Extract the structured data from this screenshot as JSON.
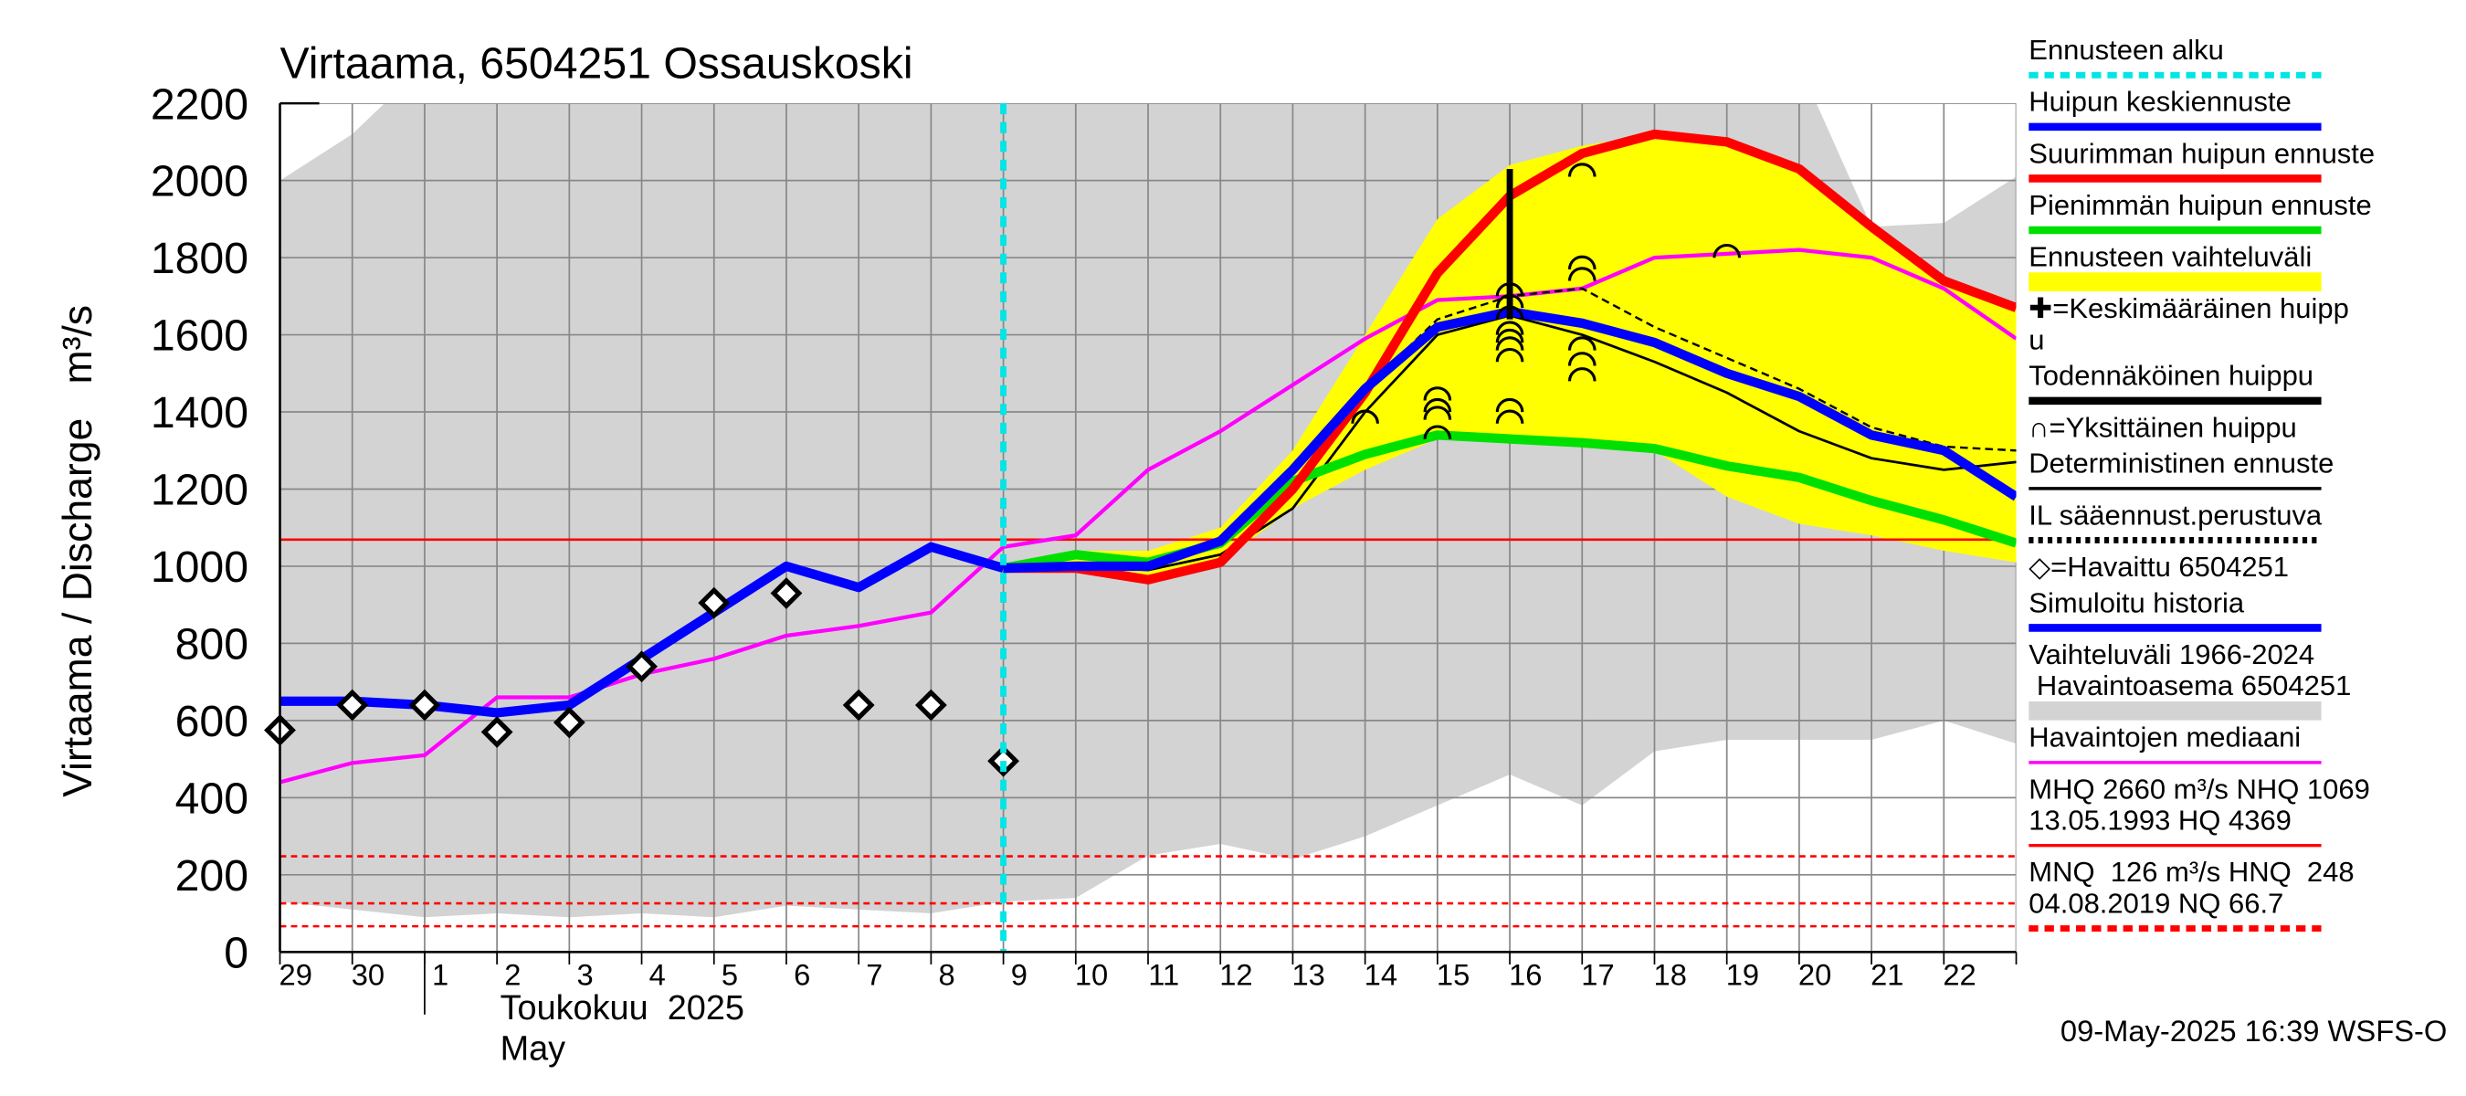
{
  "chart_data": {
    "type": "line",
    "title": "Virtaama, 6504251 Ossauskoski",
    "y_label": "Virtaama / Discharge   m³/s",
    "x_label_lines": [
      "Toukokuu  2025",
      "May"
    ],
    "timestamp": "09-May-2025 16:39 WSFS-O",
    "categories": [
      "29",
      "30",
      "1",
      "2",
      "3",
      "4",
      "5",
      "6",
      "7",
      "8",
      "9",
      "10",
      "11",
      "12",
      "13",
      "14",
      "15",
      "16",
      "17",
      "18",
      "19",
      "20",
      "21",
      "22",
      null
    ],
    "ylim": [
      0,
      2200
    ],
    "yticks": [
      0,
      200,
      400,
      600,
      800,
      1000,
      1200,
      1400,
      1600,
      1800,
      2000,
      2200
    ],
    "grid": true,
    "forecast_start": {
      "category": "9",
      "color": "#00e5e5"
    },
    "bands": [
      {
        "color": "#d3d3d3",
        "low": [
          130,
          110,
          90,
          100,
          90,
          100,
          90,
          120,
          110,
          100,
          130,
          140,
          250,
          280,
          240,
          300,
          380,
          460,
          380,
          520,
          550,
          550,
          550,
          600,
          540
        ],
        "high": [
          2000,
          2120,
          2300,
          2300,
          2300,
          2300,
          2300,
          2300,
          2300,
          2300,
          2300,
          2300,
          2300,
          2300,
          2300,
          2300,
          2300,
          2300,
          2300,
          2300,
          2300,
          2300,
          1880,
          1890,
          2010
        ]
      },
      {
        "color": "#ffff00",
        "low": [
          null,
          null,
          null,
          null,
          null,
          null,
          null,
          null,
          null,
          null,
          995,
          995,
          965,
          1010,
          1150,
          1250,
          1330,
          1320,
          1310,
          1300,
          1180,
          1110,
          1080,
          1040,
          1010
        ],
        "high": [
          null,
          null,
          null,
          null,
          null,
          null,
          null,
          null,
          null,
          null,
          995,
          1040,
          1040,
          1100,
          1300,
          1600,
          1900,
          2040,
          2090,
          2120,
          2100,
          2030,
          1880,
          1740,
          1670
        ]
      }
    ],
    "reference_lines": [
      {
        "value": 1069,
        "color": "#ff0000",
        "style": "solid"
      },
      {
        "value": 248,
        "color": "#ff0000",
        "style": "dashed"
      },
      {
        "value": 126,
        "color": "#ff0000",
        "style": "dashed"
      },
      {
        "value": 66.7,
        "color": "#ff0000",
        "style": "dashed"
      }
    ],
    "series": [
      {
        "color": "#ff00ff",
        "style": "medium",
        "values": [
          440,
          490,
          510,
          660,
          660,
          720,
          760,
          820,
          845,
          880,
          1050,
          1080,
          1250,
          1350,
          1470,
          1590,
          1690,
          1700,
          1720,
          1800,
          1810,
          1820,
          1800,
          1720,
          1590
        ]
      },
      {
        "color": "#000000",
        "style": "dashed",
        "values": [
          null,
          null,
          null,
          null,
          null,
          null,
          null,
          null,
          null,
          null,
          995,
          1000,
          1000,
          1060,
          1250,
          1460,
          1640,
          1700,
          1720,
          1620,
          1540,
          1460,
          1360,
          1310,
          1300
        ]
      },
      {
        "color": "#000000",
        "style": "thin",
        "values": [
          null,
          null,
          null,
          null,
          null,
          null,
          null,
          null,
          null,
          null,
          995,
          1000,
          990,
          1030,
          1150,
          1400,
          1600,
          1650,
          1600,
          1530,
          1450,
          1350,
          1280,
          1250,
          1270
        ]
      },
      {
        "color": "#00e000",
        "style": "thick",
        "values": [
          null,
          null,
          null,
          null,
          null,
          null,
          null,
          null,
          null,
          null,
          995,
          1030,
          1010,
          1060,
          1220,
          1290,
          1340,
          1330,
          1320,
          1305,
          1260,
          1230,
          1170,
          1120,
          1060
        ]
      },
      {
        "color": "#ff0000",
        "style": "thick",
        "values": [
          null,
          null,
          null,
          null,
          null,
          null,
          null,
          null,
          null,
          null,
          995,
          995,
          965,
          1010,
          1200,
          1450,
          1760,
          1960,
          2070,
          2120,
          2100,
          2030,
          1880,
          1740,
          1670
        ]
      },
      {
        "color": "#0000ff",
        "style": "thick",
        "values": [
          650,
          650,
          640,
          620,
          640,
          760,
          880,
          1000,
          945,
          1050,
          995,
          null,
          null,
          null,
          null,
          null,
          null,
          null,
          null,
          null,
          null,
          null,
          null,
          null,
          null
        ]
      },
      {
        "color": "#0000ff",
        "style": "thick",
        "values": [
          null,
          null,
          null,
          null,
          null,
          null,
          null,
          null,
          null,
          null,
          995,
          1000,
          1000,
          1065,
          1250,
          1460,
          1620,
          1660,
          1630,
          1580,
          1500,
          1440,
          1340,
          1300,
          1180
        ]
      }
    ],
    "observed": {
      "color": "#000000",
      "values": [
        575,
        640,
        640,
        570,
        595,
        740,
        905,
        930,
        640,
        640,
        495,
        null,
        null,
        null,
        null,
        null,
        null,
        null,
        null,
        null,
        null,
        null,
        null,
        null,
        null
      ]
    },
    "single_peaks": {
      "color": "#000000",
      "categories": [
        "14",
        "15",
        "15",
        "15",
        "15",
        "16",
        "16",
        "16",
        "16",
        "16",
        "16",
        "16",
        "16",
        "16",
        "17",
        "17",
        "17",
        "17",
        "17",
        "17",
        "19"
      ],
      "values": [
        1390,
        1350,
        1400,
        1420,
        1450,
        1390,
        1420,
        1550,
        1580,
        1620,
        1660,
        1690,
        1720,
        1600,
        1500,
        1540,
        1580,
        1760,
        1790,
        2030,
        1820
      ]
    },
    "probable_peak": {
      "category": "16",
      "values": [
        1640,
        2030
      ],
      "color": "#000000"
    },
    "legend": [
      {
        "lines": [
          "Ennusteen alku"
        ],
        "color": "#00e5e5",
        "style": "dashed"
      },
      {
        "lines": [
          "Huipun keskiennuste"
        ],
        "color": "#0000ff",
        "style": "thick"
      },
      {
        "lines": [
          "Suurimman huipun ennuste"
        ],
        "color": "#ff0000",
        "style": "thick"
      },
      {
        "lines": [
          "Pienimmän huipun ennuste"
        ],
        "color": "#00e000",
        "style": "thick"
      },
      {
        "lines": [
          "Ennusteen vaihteluväli"
        ],
        "color": "#ffff00",
        "style": "bar"
      },
      {
        "lines": [
          "✚=Keskimääräinen huipp",
          "u"
        ],
        "color": "#000000",
        "style": "none"
      },
      {
        "lines": [
          "Todennäköinen huippu"
        ],
        "color": "#000000",
        "style": "thick"
      },
      {
        "lines": [
          "∩=Yksittäinen huippu"
        ],
        "color": "#000000",
        "style": "none"
      },
      {
        "lines": [
          "Deterministinen ennuste"
        ],
        "color": "#000000",
        "style": "thin"
      },
      {
        "lines": [
          "IL sääennust.perustuva"
        ],
        "color": "#000000",
        "style": "dashed"
      },
      {
        "lines": [
          "◇=Havaittu 6504251"
        ],
        "color": "#000000",
        "style": "none"
      },
      {
        "lines": [
          "Simuloitu historia"
        ],
        "color": "#0000ff",
        "style": "thick"
      },
      {
        "lines": [
          "Vaihteluväli 1966-2024",
          " Havaintoasema 6504251"
        ],
        "color": "#d3d3d3",
        "style": "bar"
      },
      {
        "lines": [
          "Havaintojen mediaani"
        ],
        "color": "#ff00ff",
        "style": "thin"
      },
      {
        "lines": [
          "MHQ 2660 m³/s NHQ 1069",
          "13.05.1993 HQ 4369"
        ],
        "color": "#ff0000",
        "style": "thin"
      },
      {
        "lines": [
          "MNQ  126 m³/s HNQ  248",
          "04.08.2019 NQ 66.7"
        ],
        "color": "#ff0000",
        "style": "dashed"
      }
    ]
  }
}
